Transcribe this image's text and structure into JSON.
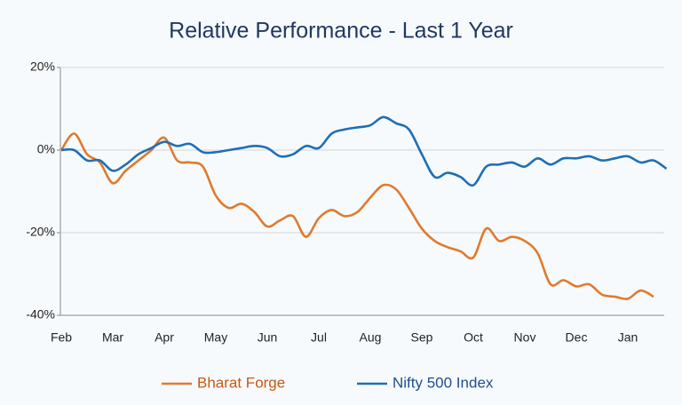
{
  "chart_data": {
    "type": "line",
    "title": "Relative Performance - Last 1 Year",
    "categories": [
      "Feb",
      null,
      null,
      null,
      "Mar",
      null,
      null,
      null,
      "Apr",
      null,
      null,
      null,
      "May",
      null,
      null,
      null,
      "Jun",
      null,
      null,
      null,
      "Jul",
      null,
      null,
      null,
      "Aug",
      null,
      null,
      null,
      "Sep",
      null,
      null,
      null,
      "Oct",
      null,
      null,
      null,
      "Nov",
      null,
      null,
      null,
      "Dec",
      null,
      null,
      null,
      "Jan",
      null,
      null,
      null
    ],
    "series": [
      {
        "name": "Bharat Forge",
        "color": "#e07a2e",
        "values": [
          0,
          4,
          -1,
          -3,
          -8,
          -5,
          -2.5,
          0,
          3,
          -2.5,
          -3,
          -4,
          -11,
          -14,
          -13,
          -15,
          -18.5,
          -17,
          -16,
          -21,
          -16.5,
          -14.5,
          -16,
          -15,
          -11.5,
          -8.5,
          -9.5,
          -14,
          -19,
          -22,
          -23.5,
          -24.5,
          -26,
          -19,
          -22,
          -21,
          -22,
          -25,
          -32.5,
          -31.5,
          -33,
          -32.5,
          -35,
          -35.5,
          -36,
          -34,
          -35.5,
          null
        ]
      },
      {
        "name": "Nifty 500 Index",
        "color": "#1f6fb4",
        "values": [
          0,
          0,
          -2.5,
          -2.5,
          -5,
          -3.5,
          -1,
          0.5,
          2,
          1,
          1.5,
          -0.5,
          -0.5,
          0,
          0.5,
          1,
          0.5,
          -1.5,
          -1,
          1,
          0.5,
          4,
          5,
          5.5,
          6,
          8,
          6.5,
          5,
          -1,
          -6.5,
          -5.5,
          -6.5,
          -8.5,
          -4,
          -3.5,
          -3,
          -4,
          -2,
          -3.5,
          -2,
          -2,
          -1.5,
          -2.5,
          -2,
          -1.5,
          -3,
          -2.5,
          -4.5
        ]
      }
    ],
    "ylim": [
      -40,
      20
    ],
    "yticks": [
      {
        "value": -40,
        "label": "-40%"
      },
      {
        "value": -20,
        "label": "-20%"
      },
      {
        "value": 0,
        "label": "0%"
      },
      {
        "value": 20,
        "label": "20%"
      }
    ],
    "grid": true
  }
}
